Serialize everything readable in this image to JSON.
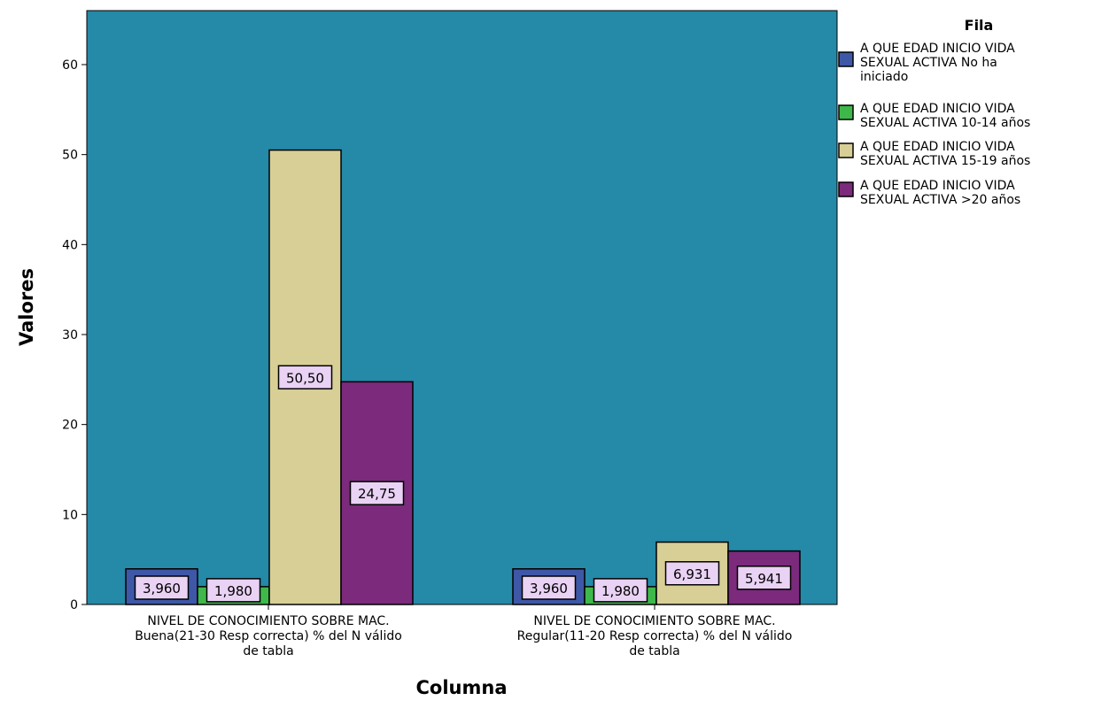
{
  "chart_data": {
    "type": "bar",
    "title": "",
    "xlabel": "Columna",
    "ylabel": "Valores",
    "ylim": [
      0,
      66
    ],
    "yticks": [
      0,
      10,
      20,
      30,
      40,
      50,
      60
    ],
    "grid": false,
    "plot_background": "#2589A8",
    "legend": {
      "title": "Fila",
      "position": "right"
    },
    "categories": [
      [
        "NIVEL DE CONOCIMIENTO SOBRE MAC.",
        "Buena(21-30 Resp correcta) % del N válido",
        "de tabla"
      ],
      [
        "NIVEL DE CONOCIMIENTO SOBRE MAC.",
        "Regular(11-20 Resp correcta) % del N válido",
        "de tabla"
      ]
    ],
    "series": [
      {
        "name": [
          "A QUE EDAD INICIO VIDA",
          "SEXUAL ACTIVA No ha",
          "iniciado"
        ],
        "color": "#3E58A7",
        "values": [
          3.96,
          3.96
        ],
        "labels": [
          "3,960",
          "3,960"
        ]
      },
      {
        "name": [
          "A QUE EDAD INICIO VIDA",
          "SEXUAL ACTIVA 10-14 años"
        ],
        "color": "#3EB84A",
        "values": [
          1.98,
          1.98
        ],
        "labels": [
          "1,980",
          "1,980"
        ]
      },
      {
        "name": [
          "A QUE EDAD INICIO VIDA",
          "SEXUAL ACTIVA 15-19 años"
        ],
        "color": "#D8CF96",
        "values": [
          50.5,
          6.931
        ],
        "labels": [
          "50,50",
          "6,931"
        ]
      },
      {
        "name": [
          "A QUE EDAD INICIO VIDA",
          "SEXUAL ACTIVA >20 años"
        ],
        "color": "#7B2A7C",
        "values": [
          24.75,
          5.941
        ],
        "labels": [
          "24,75",
          "5,941"
        ]
      }
    ],
    "data_label_fill": "#E9D2F4"
  }
}
